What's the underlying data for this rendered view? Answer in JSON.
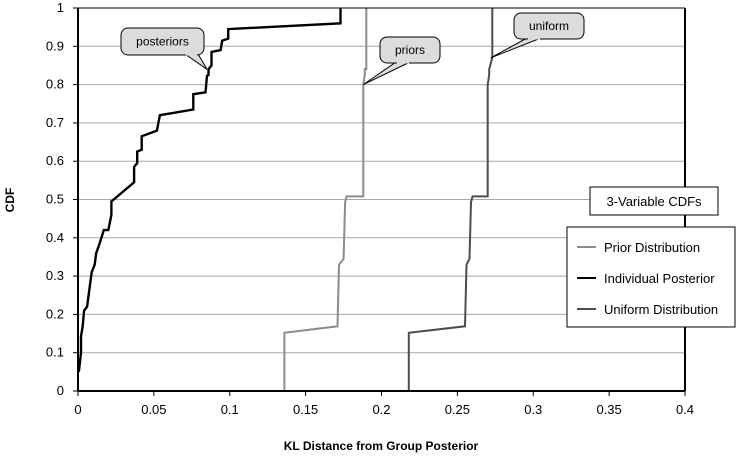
{
  "chart_data": {
    "type": "line",
    "title": "",
    "xlabel": "KL Distance from Group Posterior",
    "ylabel": "CDF",
    "xlim": [
      0,
      0.4
    ],
    "ylim": [
      0,
      1
    ],
    "x_ticks": [
      "0",
      "0.05",
      "0.1",
      "0.15",
      "0.2",
      "0.25",
      "0.3",
      "0.35",
      "0.4"
    ],
    "y_ticks": [
      "0",
      "0.1",
      "0.2",
      "0.3",
      "0.4",
      "0.5",
      "0.6",
      "0.7",
      "0.8",
      "0.9",
      "1"
    ],
    "grid": "horizontal",
    "legend_title": "3-Variable CDFs",
    "legend_position": "right",
    "series": [
      {
        "name": "Prior Distribution",
        "color": "#8c8c8c",
        "x": [
          0.136,
          0.136,
          0.171,
          0.172,
          0.175,
          0.176,
          0.177,
          0.188,
          0.188,
          0.189,
          0.189,
          0.19,
          0.19
        ],
        "y": [
          0.0,
          0.152,
          0.169,
          0.33,
          0.345,
          0.493,
          0.508,
          0.508,
          0.8,
          0.825,
          0.84,
          0.84,
          1.0
        ]
      },
      {
        "name": "Individual Posterior",
        "color": "#000000",
        "x": [
          0.0005,
          0.001,
          0.002,
          0.002,
          0.003,
          0.004,
          0.006,
          0.008,
          0.009,
          0.011,
          0.012,
          0.014,
          0.017,
          0.02,
          0.022,
          0.022,
          0.037,
          0.037,
          0.039,
          0.039,
          0.042,
          0.042,
          0.052,
          0.054,
          0.076,
          0.076,
          0.084,
          0.085,
          0.086,
          0.086,
          0.088,
          0.088,
          0.094,
          0.095,
          0.099,
          0.099,
          0.173,
          0.173
        ],
        "y": [
          0.05,
          0.065,
          0.1,
          0.143,
          0.167,
          0.21,
          0.22,
          0.28,
          0.31,
          0.33,
          0.36,
          0.382,
          0.42,
          0.42,
          0.46,
          0.495,
          0.545,
          0.585,
          0.595,
          0.625,
          0.63,
          0.665,
          0.68,
          0.72,
          0.735,
          0.775,
          0.78,
          0.823,
          0.825,
          0.84,
          0.85,
          0.885,
          0.89,
          0.915,
          0.92,
          0.945,
          0.96,
          1.0
        ]
      },
      {
        "name": "Uniform Distribution",
        "color": "#4d4d4d",
        "x": [
          0.218,
          0.218,
          0.255,
          0.256,
          0.258,
          0.259,
          0.26,
          0.27,
          0.27,
          0.271,
          0.271,
          0.273,
          0.273
        ],
        "y": [
          0.0,
          0.152,
          0.169,
          0.33,
          0.345,
          0.493,
          0.508,
          0.508,
          0.8,
          0.825,
          0.84,
          0.87,
          1.0
        ]
      }
    ],
    "annotations": [
      {
        "text": "posteriors",
        "anchor_x": 0.085,
        "anchor_y": 0.84
      },
      {
        "text": "priors",
        "anchor_x": 0.188,
        "anchor_y": 0.8
      },
      {
        "text": "uniform",
        "anchor_x": 0.272,
        "anchor_y": 0.87
      }
    ]
  }
}
